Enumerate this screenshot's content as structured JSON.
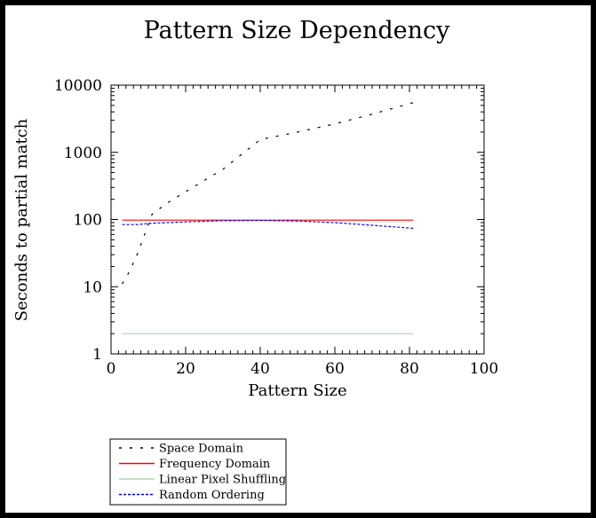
{
  "chart_data": {
    "type": "line",
    "title": "Pattern Size Dependency",
    "xlabel": "Pattern Size",
    "ylabel": "Seconds to partial match",
    "xlim": [
      0,
      100
    ],
    "ylim": [
      1,
      10000
    ],
    "yscale": "log",
    "xticks": [
      0,
      20,
      40,
      60,
      80,
      100
    ],
    "yticks": [
      1,
      10,
      100,
      1000,
      10000
    ],
    "xtick_labels": [
      "0",
      "20",
      "40",
      "60",
      "80",
      "100"
    ],
    "ytick_labels": [
      "1",
      "10",
      "100",
      "1000",
      "10000"
    ],
    "grid": false,
    "legend_position": "below the plot, bottom-left",
    "series": [
      {
        "name": "Space Domain",
        "color": "#000000",
        "style": "dashed",
        "points": [
          [
            3,
            11
          ],
          [
            5,
            17
          ],
          [
            7,
            30
          ],
          [
            9,
            60
          ],
          [
            11,
            120
          ],
          [
            15,
            175
          ],
          [
            20,
            260
          ],
          [
            30,
            560
          ],
          [
            40,
            1550
          ],
          [
            50,
            2000
          ],
          [
            60,
            2650
          ],
          [
            70,
            3700
          ],
          [
            81,
            5500
          ]
        ]
      },
      {
        "name": "Frequency Domain",
        "color": "#ff0000",
        "style": "solid",
        "points": [
          [
            3,
            98
          ],
          [
            81,
            98
          ]
        ]
      },
      {
        "name": "Linear Pixel Shuffling",
        "color": "#a8d8a8",
        "style": "solid",
        "points": [
          [
            3,
            2
          ],
          [
            81,
            2
          ]
        ]
      },
      {
        "name": "Random Ordering",
        "color": "#0000ff",
        "style": "dotted",
        "points": [
          [
            3,
            84
          ],
          [
            7,
            84
          ],
          [
            11,
            88
          ],
          [
            20,
            92
          ],
          [
            30,
            96
          ],
          [
            40,
            97
          ],
          [
            50,
            95
          ],
          [
            60,
            90
          ],
          [
            70,
            82
          ],
          [
            81,
            74
          ]
        ]
      }
    ]
  }
}
